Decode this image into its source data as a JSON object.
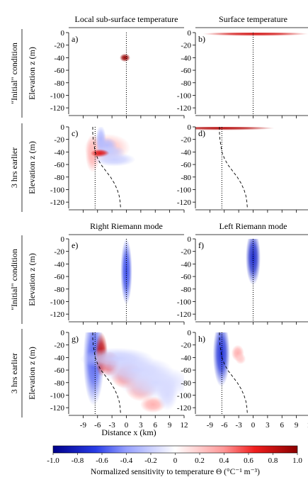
{
  "chart_data": {
    "type": "heatmap",
    "colorbar": {
      "range": [
        -1.0,
        1.0
      ],
      "ticks": [
        "-1.0",
        "-0.8",
        "-0.6",
        "-0.4",
        "-0.2",
        "0",
        "0.2",
        "0.4",
        "0.6",
        "0.8",
        "1.0"
      ],
      "label": "Normalized sensitivity to temperature Θ (°C⁻¹ m⁻³)",
      "colormap": "blue-white-red",
      "colors": {
        "neg_max": "#00008b",
        "neutral": "#ffffff",
        "pos_max": "#8b0000"
      }
    },
    "x_axis": {
      "label": "Distance  x (km)",
      "range": [
        -12,
        12
      ],
      "ticks": [
        -9,
        -6,
        -3,
        0,
        3,
        6,
        9,
        12
      ],
      "tick_labels": [
        "-9",
        "-6",
        "-3",
        "0",
        "3",
        "6",
        "9",
        "12"
      ]
    },
    "y_axis": {
      "label": "Elevation  z (m)",
      "range": [
        -130,
        0
      ],
      "ticks": [
        0,
        -20,
        -40,
        -60,
        -80,
        -100,
        -120
      ],
      "tick_labels": [
        "0",
        "-20",
        "-40",
        "-60",
        "-80",
        "-100",
        "-120"
      ]
    },
    "column_titles": [
      [
        "Local sub-surface temperature",
        "Surface temperature"
      ],
      [
        "Right Riemann mode",
        "Left Riemann mode"
      ]
    ],
    "row_labels": [
      "\"Initial\" condition",
      "3 hrs earlier",
      "\"Initial\" condition",
      "3 hrs earlier"
    ],
    "interface_curve": [
      [
        -0.5,
        0
      ],
      [
        -0.5,
        -10
      ],
      [
        -0.4,
        -20
      ],
      [
        -0.2,
        -30
      ],
      [
        0,
        -40
      ],
      [
        0.5,
        -50
      ],
      [
        1.2,
        -60
      ],
      [
        2.2,
        -70
      ],
      [
        3.2,
        -80
      ],
      [
        4.0,
        -90
      ],
      [
        4.6,
        -100
      ],
      [
        5.0,
        -110
      ],
      [
        5.2,
        -120
      ],
      [
        5.3,
        -130
      ]
    ],
    "panels": [
      {
        "label": "a)",
        "row": 0,
        "col": 0,
        "dotted_x": 0,
        "dashed_shift_x": null,
        "blobs": [
          {
            "x": -0.3,
            "z": -40,
            "sx": 0.5,
            "sz": 3,
            "v": 0.95
          }
        ]
      },
      {
        "label": "b)",
        "row": 0,
        "col": 1,
        "dotted_x": 0,
        "dashed_shift_x": null,
        "blobs": [
          {
            "x": 0.5,
            "z": -2,
            "sx": 5,
            "sz": 1.5,
            "v": 0.75
          }
        ]
      },
      {
        "label": "c)",
        "row": 1,
        "col": 0,
        "dotted_x": -6.5,
        "dashed_shift_x": -6.5,
        "blobs": [
          {
            "x": -7,
            "z": -42,
            "sx": 0.7,
            "sz": 14,
            "v": 0.3
          },
          {
            "x": -4,
            "z": -33,
            "sx": 2.2,
            "sz": 10,
            "v": 0.22
          },
          {
            "x": -5.3,
            "z": -20,
            "sx": 0.5,
            "sz": 10,
            "v": -0.3
          },
          {
            "x": -4.1,
            "z": -30,
            "sx": 1.0,
            "sz": 6,
            "v": -0.28
          },
          {
            "x": -3.5,
            "z": -40,
            "sx": 1.5,
            "sz": 5,
            "v": -0.22
          },
          {
            "x": -5.5,
            "z": -42,
            "sx": 0.9,
            "sz": 3,
            "v": 0.7
          },
          {
            "x": -2.5,
            "z": -52,
            "sx": 2.0,
            "sz": 5,
            "v": -0.2
          }
        ]
      },
      {
        "label": "d)",
        "row": 1,
        "col": 1,
        "dotted_x": -6.5,
        "dashed_shift_x": -6.5,
        "blobs": [
          {
            "x": -6.5,
            "z": -2,
            "sx": 5,
            "sz": 1.5,
            "v": 0.85
          }
        ]
      },
      {
        "label": "e)",
        "row": 2,
        "col": 0,
        "dotted_x": 0,
        "dashed_shift_x": null,
        "blobs": [
          {
            "x": 0,
            "z": -52,
            "sx": 0.55,
            "sz": 24,
            "v": -0.6
          }
        ]
      },
      {
        "label": "f)",
        "row": 2,
        "col": 1,
        "dotted_x": 0,
        "dashed_shift_x": null,
        "blobs": [
          {
            "x": 0,
            "z": -30,
            "sx": 0.7,
            "sz": 20,
            "v": -0.75
          }
        ]
      },
      {
        "label": "g)",
        "row": 3,
        "col": 0,
        "dotted_x": -6.5,
        "dashed_shift_x": -6.5,
        "blobs": [
          {
            "x": -6.8,
            "z": -42,
            "sx": 1.0,
            "sz": 34,
            "v": -0.55
          },
          {
            "x": -5.2,
            "z": -35,
            "sx": 0.6,
            "sz": 16,
            "v": 0.8
          },
          {
            "x": -3.5,
            "z": -50,
            "sx": 1.0,
            "sz": 9,
            "v": 0.6
          },
          {
            "x": 0,
            "z": -68,
            "sx": 1.5,
            "sz": 10,
            "v": 0.45
          },
          {
            "x": 3,
            "z": -88,
            "sx": 1.5,
            "sz": 10,
            "v": 0.35
          },
          {
            "x": 5.5,
            "z": -115,
            "sx": 1.2,
            "sz": 6,
            "v": 0.3
          },
          {
            "x": -2,
            "z": -42,
            "sx": 3.5,
            "sz": 8,
            "v": -0.2
          },
          {
            "x": 2,
            "z": -60,
            "sx": 3.5,
            "sz": 10,
            "v": -0.18
          },
          {
            "x": 6,
            "z": -80,
            "sx": 3.5,
            "sz": 12,
            "v": -0.16
          },
          {
            "x": 8.5,
            "z": -98,
            "sx": 1.0,
            "sz": 12,
            "v": -0.15
          }
        ]
      },
      {
        "label": "h)",
        "row": 3,
        "col": 1,
        "dotted_x": -6.5,
        "dashed_shift_x": -6.5,
        "blobs": [
          {
            "x": -6.6,
            "z": -34,
            "sx": 0.8,
            "sz": 24,
            "v": -0.7
          },
          {
            "x": -3.2,
            "z": -33,
            "sx": 0.6,
            "sz": 6,
            "v": 0.3
          },
          {
            "x": -2.6,
            "z": -42,
            "sx": 0.5,
            "sz": 4,
            "v": 0.2
          }
        ]
      }
    ]
  }
}
